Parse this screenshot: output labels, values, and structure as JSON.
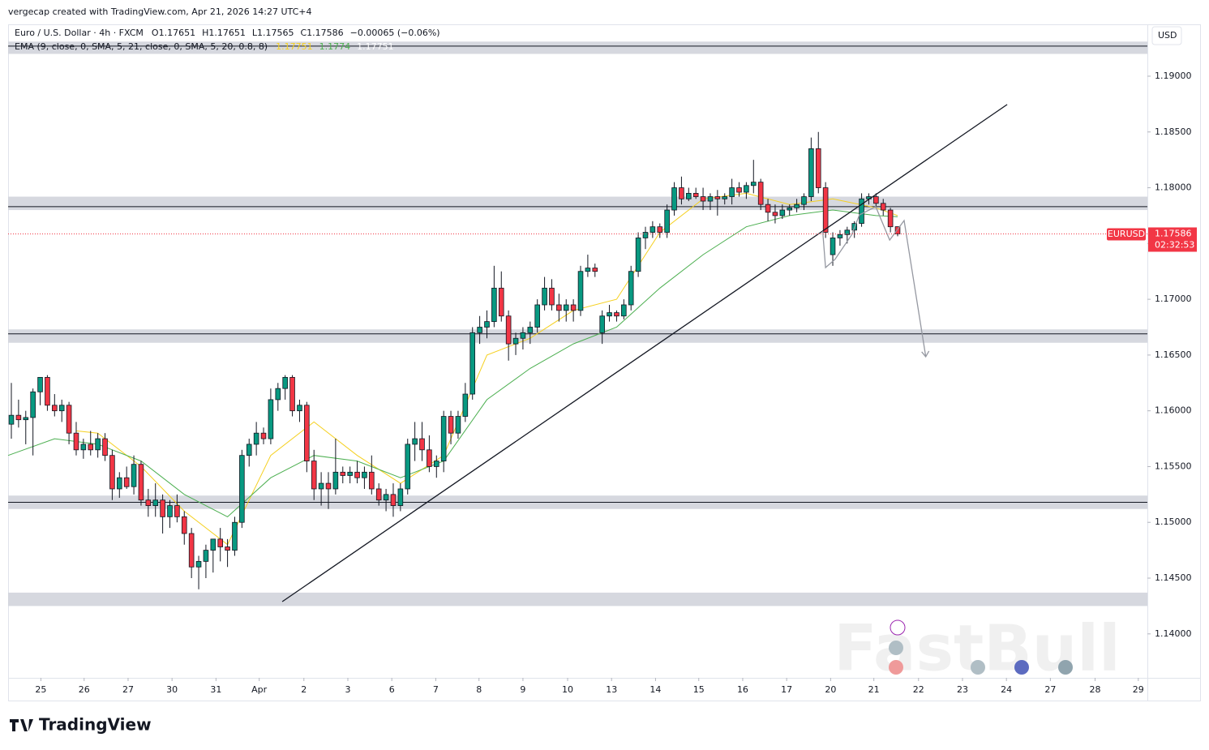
{
  "chart_data": {
    "type": "candlestick",
    "credit": "vergecap created with TradingView.com, Apr 21, 2026 14:27 UTC+4",
    "symbol": "Euro / U.S. Dollar · 4h · FXCM",
    "ohlc_legend": [
      "O1.17651",
      "H1.17651",
      "L1.17565",
      "C1.17586"
    ],
    "change": "−0.00065 (−0.06%)",
    "indicator": "EMA (9, close, 0, SMA, 5, 21, close, 0, SMA, 5, 20, 0.8, 8)",
    "indicator_values": [
      1.17751,
      1.1774,
      1.17751
    ],
    "currency": "USD",
    "ticker": "EURUSD",
    "last_price": 1.17586,
    "countdown": "02:32:53",
    "brand": "TradingView",
    "watermark": "FastBull",
    "up_color": "#089981",
    "down_color": "#f23645",
    "xlim": [
      -4.45,
      153.66
    ],
    "ylim": [
      1.13606,
      1.19465
    ],
    "yticks": [
      {
        "value": 1.14,
        "label": "1.14000"
      },
      {
        "value": 1.145,
        "label": "1.14500"
      },
      {
        "value": 1.15,
        "label": "1.15000"
      },
      {
        "value": 1.155,
        "label": "1.15500"
      },
      {
        "value": 1.16,
        "label": "1.16000"
      },
      {
        "value": 1.165,
        "label": "1.16500"
      },
      {
        "value": 1.17,
        "label": "1.17000"
      },
      {
        "value": 1.175,
        "label": "1.17500"
      },
      {
        "value": 1.18,
        "label": "1.18000"
      },
      {
        "value": 1.185,
        "label": "1.18500"
      },
      {
        "value": 1.19,
        "label": "1.19000"
      }
    ],
    "xticks": [
      {
        "value": 0.1,
        "label": "25"
      },
      {
        "value": 6.1,
        "label": "26"
      },
      {
        "value": 12.2,
        "label": "27"
      },
      {
        "value": 18.3,
        "label": "30"
      },
      {
        "value": 24.4,
        "label": "31"
      },
      {
        "value": 30.4,
        "label": "Apr"
      },
      {
        "value": 36.6,
        "label": "2"
      },
      {
        "value": 42.7,
        "label": "3"
      },
      {
        "value": 48.8,
        "label": "6"
      },
      {
        "value": 54.9,
        "label": "7"
      },
      {
        "value": 60.9,
        "label": "8"
      },
      {
        "value": 67.0,
        "label": "9"
      },
      {
        "value": 73.2,
        "label": "10"
      },
      {
        "value": 79.3,
        "label": "13"
      },
      {
        "value": 85.4,
        "label": "14"
      },
      {
        "value": 91.4,
        "label": "15"
      },
      {
        "value": 97.5,
        "label": "16"
      },
      {
        "value": 103.6,
        "label": "17"
      },
      {
        "value": 109.7,
        "label": "20"
      },
      {
        "value": 115.7,
        "label": "21"
      },
      {
        "value": 121.9,
        "label": "22"
      },
      {
        "value": 128.0,
        "label": "23"
      },
      {
        "value": 134.1,
        "label": "24"
      },
      {
        "value": 140.2,
        "label": "27"
      },
      {
        "value": 146.4,
        "label": "28"
      },
      {
        "value": 152.4,
        "label": "29"
      }
    ],
    "x": [
      -4,
      -3,
      -2,
      -1,
      0,
      1,
      2,
      3,
      4,
      5,
      6,
      7,
      8,
      9,
      10,
      11,
      12,
      13,
      14,
      15,
      16,
      17,
      18,
      19,
      20,
      21,
      22,
      23,
      24,
      25,
      26,
      27,
      28,
      29,
      30,
      31,
      32,
      33,
      34,
      35,
      36,
      37,
      38,
      39,
      40,
      41,
      42,
      43,
      44,
      45,
      46,
      47,
      48,
      49,
      50,
      51,
      52,
      53,
      54,
      55,
      56,
      57,
      58,
      59,
      60,
      61,
      62,
      63,
      64,
      65,
      66,
      67,
      68,
      69,
      70,
      71,
      72,
      73,
      74,
      75,
      76,
      77,
      78,
      79,
      80,
      81,
      82,
      83,
      84,
      85,
      86,
      87,
      88,
      89,
      90,
      91,
      92,
      93,
      94,
      95,
      96,
      97,
      98,
      99,
      100,
      101,
      102,
      103,
      104,
      105,
      106,
      107,
      108,
      109,
      110,
      111,
      112,
      113,
      114,
      115,
      116,
      117,
      118,
      119
    ],
    "open": [
      1.1588,
      1.1596,
      1.1592,
      1.1594,
      1.1617,
      1.163,
      1.1605,
      1.16,
      1.1605,
      1.158,
      1.1565,
      1.157,
      1.1565,
      1.1575,
      1.156,
      1.153,
      1.154,
      1.1532,
      1.1552,
      1.152,
      1.1515,
      1.152,
      1.1505,
      1.1515,
      1.1505,
      1.149,
      1.146,
      1.1465,
      1.1475,
      1.1485,
      1.1478,
      1.1475,
      1.15,
      1.156,
      1.157,
      1.158,
      1.1575,
      1.161,
      1.162,
      1.163,
      1.16,
      1.1605,
      1.1555,
      1.153,
      1.1535,
      1.153,
      1.1545,
      1.1542,
      1.1545,
      1.154,
      1.1545,
      1.153,
      1.152,
      1.1525,
      1.1515,
      1.153,
      1.157,
      1.1575,
      1.1565,
      1.155,
      1.1555,
      1.1595,
      1.158,
      1.1595,
      1.1615,
      1.167,
      1.1675,
      1.168,
      1.171,
      1.1685,
      1.166,
      1.1665,
      1.167,
      1.1675,
      1.1695,
      1.171,
      1.1695,
      1.169,
      1.1695,
      1.169,
      1.1725,
      1.1728,
      1.167,
      1.1685,
      1.1688,
      1.1685,
      1.1695,
      1.1725,
      1.1755,
      1.176,
      1.1765,
      1.176,
      1.178,
      1.18,
      1.179,
      1.1795,
      1.1792,
      1.1788,
      1.1792,
      1.179,
      1.1792,
      1.18,
      1.1796,
      1.1802,
      1.1805,
      1.1785,
      1.1778,
      1.1775,
      1.178,
      1.1782,
      1.1785,
      1.1792,
      1.1835,
      1.18,
      1.174,
      1.1755,
      1.1758,
      1.1762,
      1.1768,
      1.179,
      1.1792,
      1.1786,
      1.178,
      1.17651
    ],
    "high": [
      1.1625,
      1.161,
      1.16,
      1.162,
      1.163,
      1.1632,
      1.1615,
      1.161,
      1.1608,
      1.159,
      1.1575,
      1.1582,
      1.158,
      1.158,
      1.1565,
      1.1545,
      1.155,
      1.156,
      1.1555,
      1.153,
      1.1535,
      1.1525,
      1.152,
      1.1525,
      1.151,
      1.1495,
      1.147,
      1.148,
      1.1485,
      1.1495,
      1.1485,
      1.1505,
      1.1565,
      1.1575,
      1.159,
      1.1585,
      1.162,
      1.1625,
      1.1632,
      1.1632,
      1.161,
      1.1608,
      1.1565,
      1.1545,
      1.1545,
      1.1575,
      1.155,
      1.155,
      1.1555,
      1.155,
      1.156,
      1.1535,
      1.153,
      1.1535,
      1.1535,
      1.1575,
      1.159,
      1.159,
      1.1578,
      1.156,
      1.16,
      1.16,
      1.16,
      1.1625,
      1.1675,
      1.1685,
      1.169,
      1.173,
      1.1725,
      1.169,
      1.167,
      1.1675,
      1.168,
      1.17,
      1.172,
      1.1718,
      1.1705,
      1.17,
      1.17,
      1.173,
      1.174,
      1.1732,
      1.169,
      1.1695,
      1.169,
      1.17,
      1.173,
      1.176,
      1.1765,
      1.177,
      1.1768,
      1.1785,
      1.1805,
      1.181,
      1.18,
      1.18,
      1.18,
      1.1795,
      1.1798,
      1.1795,
      1.1808,
      1.1805,
      1.1805,
      1.1825,
      1.1808,
      1.179,
      1.1785,
      1.1785,
      1.1785,
      1.179,
      1.1795,
      1.1845,
      1.185,
      1.1805,
      1.176,
      1.1762,
      1.1765,
      1.177,
      1.1795,
      1.1795,
      1.1795,
      1.179,
      1.1782,
      1.17651
    ],
    "low": [
      1.1575,
      1.1585,
      1.157,
      1.156,
      1.1605,
      1.16,
      1.1595,
      1.159,
      1.157,
      1.156,
      1.1557,
      1.156,
      1.1558,
      1.1555,
      1.152,
      1.1522,
      1.153,
      1.1525,
      1.1515,
      1.1505,
      1.1505,
      1.149,
      1.1495,
      1.15,
      1.148,
      1.145,
      1.144,
      1.145,
      1.1455,
      1.1465,
      1.146,
      1.147,
      1.1495,
      1.155,
      1.156,
      1.157,
      1.157,
      1.16,
      1.161,
      1.1595,
      1.159,
      1.1545,
      1.152,
      1.1515,
      1.1512,
      1.1525,
      1.1535,
      1.1535,
      1.1535,
      1.153,
      1.1525,
      1.1515,
      1.151,
      1.1505,
      1.151,
      1.1525,
      1.1555,
      1.1555,
      1.1545,
      1.154,
      1.1545,
      1.157,
      1.1575,
      1.159,
      1.161,
      1.166,
      1.1665,
      1.1675,
      1.168,
      1.1645,
      1.165,
      1.1655,
      1.166,
      1.167,
      1.169,
      1.169,
      1.168,
      1.168,
      1.168,
      1.1685,
      1.172,
      1.172,
      1.166,
      1.168,
      1.168,
      1.1682,
      1.169,
      1.172,
      1.1745,
      1.1755,
      1.1755,
      1.1755,
      1.1775,
      1.1785,
      1.1788,
      1.179,
      1.178,
      1.178,
      1.1775,
      1.1785,
      1.1785,
      1.1792,
      1.179,
      1.1795,
      1.178,
      1.177,
      1.1768,
      1.1772,
      1.1775,
      1.1778,
      1.178,
      1.1788,
      1.1795,
      1.1755,
      1.173,
      1.1748,
      1.175,
      1.1755,
      1.1765,
      1.1785,
      1.1782,
      1.1775,
      1.176,
      1.17565
    ],
    "close": [
      1.1596,
      1.1592,
      1.1594,
      1.1617,
      1.163,
      1.1605,
      1.16,
      1.1605,
      1.158,
      1.1565,
      1.157,
      1.1565,
      1.1575,
      1.156,
      1.153,
      1.154,
      1.1532,
      1.1552,
      1.152,
      1.1515,
      1.152,
      1.1505,
      1.1515,
      1.1505,
      1.149,
      1.146,
      1.1465,
      1.1475,
      1.1485,
      1.1478,
      1.1475,
      1.15,
      1.156,
      1.157,
      1.158,
      1.1575,
      1.161,
      1.162,
      1.163,
      1.16,
      1.1605,
      1.1555,
      1.153,
      1.1535,
      1.153,
      1.1545,
      1.1542,
      1.1545,
      1.154,
      1.1545,
      1.153,
      1.152,
      1.1525,
      1.1515,
      1.153,
      1.157,
      1.1575,
      1.1565,
      1.155,
      1.1555,
      1.1595,
      1.158,
      1.1595,
      1.1615,
      1.167,
      1.1675,
      1.168,
      1.171,
      1.1685,
      1.166,
      1.1665,
      1.167,
      1.1675,
      1.1695,
      1.171,
      1.1695,
      1.169,
      1.1695,
      1.169,
      1.1725,
      1.1728,
      1.1725,
      1.1685,
      1.1688,
      1.1685,
      1.1695,
      1.1725,
      1.1755,
      1.176,
      1.1765,
      1.176,
      1.178,
      1.18,
      1.179,
      1.1795,
      1.1792,
      1.1788,
      1.1792,
      1.179,
      1.1792,
      1.18,
      1.1796,
      1.1802,
      1.1805,
      1.1785,
      1.1778,
      1.1775,
      1.178,
      1.1782,
      1.1785,
      1.1792,
      1.1835,
      1.18,
      1.176,
      1.1755,
      1.1758,
      1.1762,
      1.1768,
      1.179,
      1.1792,
      1.1786,
      1.178,
      1.1765,
      1.17586
    ],
    "lines": [
      {
        "color": "#f5d020",
        "x": [
          5,
          8,
          14,
          20,
          26,
          32,
          38,
          44,
          50,
          56,
          62,
          68,
          74,
          80,
          86,
          92,
          98,
          104,
          110,
          116,
          119
        ],
        "values": [
          1.1582,
          1.158,
          1.155,
          1.151,
          1.148,
          1.156,
          1.159,
          1.156,
          1.1535,
          1.156,
          1.165,
          1.1665,
          1.169,
          1.17,
          1.176,
          1.179,
          1.1795,
          1.1785,
          1.179,
          1.1782,
          1.17751
        ]
      },
      {
        "color": "#4caf50",
        "x": [
          -4.45,
          2,
          8,
          14,
          20,
          26,
          32,
          38,
          44,
          50,
          56,
          62,
          68,
          74,
          80,
          86,
          92,
          98,
          104,
          110,
          116,
          119
        ],
        "values": [
          1.156,
          1.1575,
          1.157,
          1.1555,
          1.1525,
          1.1505,
          1.154,
          1.156,
          1.1555,
          1.154,
          1.1555,
          1.161,
          1.1638,
          1.166,
          1.1675,
          1.171,
          1.174,
          1.1765,
          1.1775,
          1.178,
          1.1775,
          1.1774
        ]
      }
    ],
    "zones": [
      {
        "low": 1.192,
        "high": 1.1931,
        "line": 1.1927
      },
      {
        "low": 1.178,
        "high": 1.1792,
        "line": 1.1783
      },
      {
        "low": 1.1661,
        "high": 1.1673,
        "line": 1.1669
      },
      {
        "low": 1.1512,
        "high": 1.1524,
        "line": 1.1518
      },
      {
        "low": 1.1425,
        "high": 1.1437
      }
    ],
    "trendline": {
      "x": [
        33.6,
        134.2
      ],
      "values": [
        1.14289,
        1.18746
      ]
    },
    "projection": {
      "x": [
        108.6,
        109.0,
        110.3,
        112.6,
        113.7,
        115.96,
        117.9,
        119.9,
        122.9
      ],
      "values": [
        1.17611,
        1.17284,
        1.17357,
        1.17575,
        1.17757,
        1.1783,
        1.17531,
        1.17706,
        1.16485
      ]
    }
  }
}
